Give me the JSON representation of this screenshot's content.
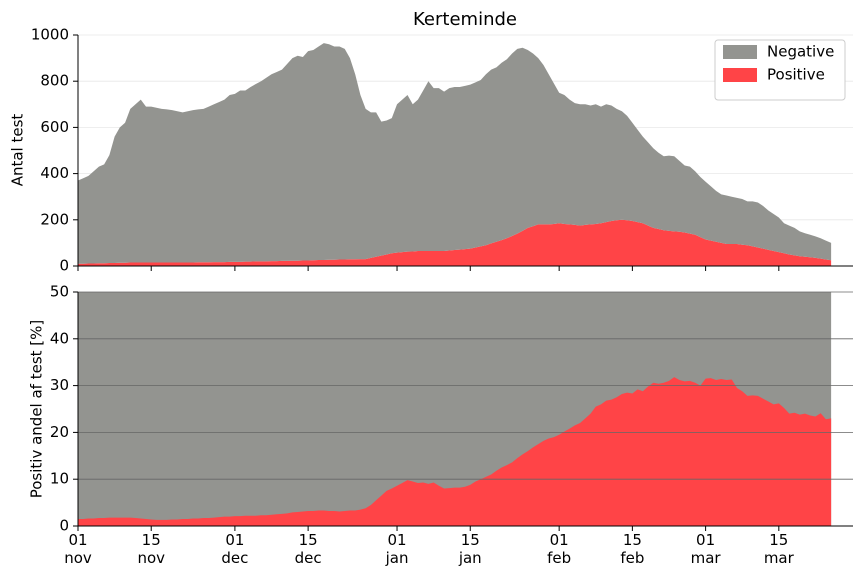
{
  "chart_data": [
    {
      "type": "stacked-area",
      "title": "Kerteminde",
      "y_label": "Antal test",
      "x": [
        "01 nov",
        "02 nov",
        "03 nov",
        "04 nov",
        "05 nov",
        "06 nov",
        "07 nov",
        "08 nov",
        "09 nov",
        "10 nov",
        "11 nov",
        "12 nov",
        "13 nov",
        "14 nov",
        "15 nov",
        "16 nov",
        "17 nov",
        "18 nov",
        "19 nov",
        "20 nov",
        "21 nov",
        "22 nov",
        "23 nov",
        "24 nov",
        "25 nov",
        "26 nov",
        "27 nov",
        "28 nov",
        "29 nov",
        "30 nov",
        "01 dec",
        "02 dec",
        "03 dec",
        "04 dec",
        "05 dec",
        "06 dec",
        "07 dec",
        "08 dec",
        "09 dec",
        "10 dec",
        "11 dec",
        "12 dec",
        "13 dec",
        "14 dec",
        "15 dec",
        "16 dec",
        "17 dec",
        "18 dec",
        "19 dec",
        "20 dec",
        "21 dec",
        "22 dec",
        "23 dec",
        "24 dec",
        "25 dec",
        "26 dec",
        "27 dec",
        "28 dec",
        "29 dec",
        "30 dec",
        "31 dec",
        "01 jan",
        "02 jan",
        "03 jan",
        "04 jan",
        "05 jan",
        "06 jan",
        "07 jan",
        "08 jan",
        "09 jan",
        "10 jan",
        "11 jan",
        "12 jan",
        "13 jan",
        "14 jan",
        "15 jan",
        "16 jan",
        "17 jan",
        "18 jan",
        "19 jan",
        "20 jan",
        "21 jan",
        "22 jan",
        "23 jan",
        "24 jan",
        "25 jan",
        "26 jan",
        "27 jan",
        "28 jan",
        "29 jan",
        "30 jan",
        "31 jan",
        "01 feb",
        "02 feb",
        "03 feb",
        "04 feb",
        "05 feb",
        "06 feb",
        "07 feb",
        "08 feb",
        "09 feb",
        "10 feb",
        "11 feb",
        "12 feb",
        "13 feb",
        "14 feb",
        "15 feb",
        "16 feb",
        "17 feb",
        "18 feb",
        "19 feb",
        "20 feb",
        "21 feb",
        "22 feb",
        "23 feb",
        "24 feb",
        "25 feb",
        "26 feb",
        "27 feb",
        "28 feb",
        "01 mar",
        "02 mar",
        "03 mar",
        "04 mar",
        "05 mar",
        "06 mar",
        "07 mar",
        "08 mar",
        "09 mar",
        "10 mar",
        "11 mar",
        "12 mar",
        "13 mar",
        "14 mar",
        "15 mar",
        "16 mar",
        "17 mar",
        "18 mar",
        "19 mar",
        "20 mar",
        "21 mar",
        "22 mar",
        "23 mar",
        "24 mar",
        "25 mar"
      ],
      "series": [
        {
          "name": "Positive",
          "color": "#ff4447",
          "values": [
            10,
            10,
            11,
            11,
            12,
            12,
            13,
            13,
            14,
            14,
            15,
            15,
            15,
            15,
            15,
            15,
            15,
            15,
            15,
            15,
            15,
            15,
            15,
            16,
            16,
            16,
            17,
            17,
            17,
            18,
            18,
            18,
            19,
            19,
            20,
            20,
            20,
            21,
            21,
            22,
            22,
            23,
            23,
            24,
            24,
            25,
            26,
            26,
            27,
            27,
            28,
            28,
            29,
            29,
            30,
            30,
            35,
            40,
            45,
            50,
            55,
            58,
            60,
            62,
            63,
            65,
            65,
            65,
            65,
            65,
            65,
            67,
            69,
            71,
            73,
            75,
            80,
            85,
            90,
            98,
            105,
            112,
            120,
            130,
            140,
            152,
            165,
            172,
            180,
            180,
            180,
            182,
            185,
            182,
            180,
            178,
            175,
            178,
            180,
            182,
            185,
            190,
            195,
            198,
            200,
            198,
            195,
            190,
            185,
            175,
            165,
            160,
            155,
            152,
            150,
            148,
            145,
            140,
            135,
            125,
            115,
            110,
            105,
            100,
            95,
            95,
            95,
            92,
            90,
            85,
            80,
            75,
            70,
            65,
            60,
            55,
            50,
            46,
            42,
            40,
            38,
            35,
            32,
            28,
            25
          ]
        },
        {
          "name": "Negative",
          "color": "#939490",
          "values": [
            360,
            370,
            379,
            399,
            418,
            428,
            467,
            547,
            586,
            606,
            665,
            685,
            705,
            675,
            675,
            670,
            665,
            663,
            660,
            655,
            650,
            655,
            660,
            662,
            664,
            674,
            683,
            693,
            703,
            722,
            727,
            742,
            741,
            756,
            768,
            780,
            795,
            809,
            819,
            828,
            853,
            877,
            887,
            881,
            906,
            910,
            924,
            939,
            933,
            923,
            922,
            912,
            871,
            801,
            710,
            650,
            630,
            625,
            580,
            580,
            585,
            642,
            660,
            678,
            637,
            655,
            695,
            735,
            705,
            705,
            690,
            703,
            706,
            704,
            707,
            710,
            715,
            720,
            740,
            752,
            755,
            768,
            775,
            790,
            800,
            793,
            770,
            748,
            720,
            690,
            650,
            608,
            565,
            558,
            540,
            527,
            525,
            522,
            515,
            518,
            505,
            510,
            500,
            482,
            470,
            452,
            425,
            400,
            375,
            360,
            345,
            330,
            320,
            326,
            325,
            307,
            290,
            290,
            275,
            260,
            250,
            235,
            220,
            210,
            210,
            205,
            200,
            198,
            190,
            195,
            195,
            185,
            170,
            160,
            150,
            130,
            125,
            119,
            108,
            102,
            97,
            93,
            88,
            82,
            75
          ]
        }
      ],
      "ylim": [
        0,
        1000
      ],
      "yticks": [
        0,
        200,
        400,
        600,
        800,
        1000
      ],
      "grid": true,
      "legend": "upper right"
    },
    {
      "type": "area",
      "y_label": "Positiv andel af test [%]",
      "color": "#ff4447",
      "background_color": "#939490",
      "x": [
        "01 nov",
        "02 nov",
        "03 nov",
        "04 nov",
        "05 nov",
        "06 nov",
        "07 nov",
        "08 nov",
        "09 nov",
        "10 nov",
        "11 nov",
        "12 nov",
        "13 nov",
        "14 nov",
        "15 nov",
        "16 nov",
        "17 nov",
        "18 nov",
        "19 nov",
        "20 nov",
        "21 nov",
        "22 nov",
        "23 nov",
        "24 nov",
        "25 nov",
        "26 nov",
        "27 nov",
        "28 nov",
        "29 nov",
        "30 nov",
        "01 dec",
        "02 dec",
        "03 dec",
        "04 dec",
        "05 dec",
        "06 dec",
        "07 dec",
        "08 dec",
        "09 dec",
        "10 dec",
        "11 dec",
        "12 dec",
        "13 dec",
        "14 dec",
        "15 dec",
        "16 dec",
        "17 dec",
        "18 dec",
        "19 dec",
        "20 dec",
        "21 dec",
        "22 dec",
        "23 dec",
        "24 dec",
        "25 dec",
        "26 dec",
        "27 dec",
        "28 dec",
        "29 dec",
        "30 dec",
        "31 dec",
        "01 jan",
        "02 jan",
        "03 jan",
        "04 jan",
        "05 jan",
        "06 jan",
        "07 jan",
        "08 jan",
        "09 jan",
        "10 jan",
        "11 jan",
        "12 jan",
        "13 jan",
        "14 jan",
        "15 jan",
        "16 jan",
        "17 jan",
        "18 jan",
        "19 jan",
        "20 jan",
        "21 jan",
        "22 jan",
        "23 jan",
        "24 jan",
        "25 jan",
        "26 jan",
        "27 jan",
        "28 jan",
        "29 jan",
        "30 jan",
        "31 jan",
        "01 feb",
        "02 feb",
        "03 feb",
        "04 feb",
        "05 feb",
        "06 feb",
        "07 feb",
        "08 feb",
        "09 feb",
        "10 feb",
        "11 feb",
        "12 feb",
        "13 feb",
        "14 feb",
        "15 feb",
        "16 feb",
        "17 feb",
        "18 feb",
        "19 feb",
        "20 feb",
        "21 feb",
        "22 feb",
        "23 feb",
        "24 feb",
        "25 feb",
        "26 feb",
        "27 feb",
        "28 feb",
        "01 mar",
        "02 mar",
        "03 mar",
        "04 mar",
        "05 mar",
        "06 mar",
        "07 mar",
        "08 mar",
        "09 mar",
        "10 mar",
        "11 mar",
        "12 mar",
        "13 mar",
        "14 mar",
        "15 mar",
        "16 mar",
        "17 mar",
        "18 mar",
        "19 mar",
        "20 mar",
        "21 mar",
        "22 mar",
        "23 mar",
        "24 mar",
        "25 mar"
      ],
      "values": [
        1.5,
        1.5,
        1.6,
        1.6,
        1.7,
        1.7,
        1.8,
        1.8,
        1.8,
        1.8,
        1.8,
        1.7,
        1.6,
        1.5,
        1.4,
        1.3,
        1.3,
        1.3,
        1.4,
        1.4,
        1.5,
        1.5,
        1.6,
        1.6,
        1.7,
        1.7,
        1.8,
        1.9,
        2.0,
        2.0,
        2.1,
        2.1,
        2.2,
        2.2,
        2.2,
        2.3,
        2.3,
        2.4,
        2.5,
        2.6,
        2.7,
        2.9,
        3.0,
        3.1,
        3.2,
        3.2,
        3.3,
        3.3,
        3.2,
        3.2,
        3.1,
        3.2,
        3.3,
        3.3,
        3.5,
        3.8,
        4.5,
        5.5,
        6.5,
        7.5,
        8.0,
        8.6,
        9.2,
        9.8,
        9.5,
        9.2,
        9.3,
        9.0,
        9.3,
        8.6,
        8.0,
        8.1,
        8.2,
        8.2,
        8.4,
        8.8,
        9.5,
        10.0,
        10.5,
        11.0,
        11.8,
        12.5,
        13.0,
        13.6,
        14.5,
        15.3,
        16.0,
        16.8,
        17.5,
        18.2,
        18.7,
        19.0,
        19.5,
        20.2,
        20.8,
        21.5,
        22.0,
        23.0,
        24.0,
        25.5,
        26.0,
        26.8,
        27.0,
        27.5,
        28.2,
        28.5,
        28.3,
        29.2,
        28.8,
        29.8,
        30.6,
        30.4,
        30.6,
        31.0,
        31.8,
        31.2,
        30.9,
        31.0,
        30.6,
        30.0,
        31.5,
        31.6,
        31.2,
        31.4,
        31.2,
        31.3,
        29.5,
        28.8,
        27.8,
        27.9,
        27.8,
        27.2,
        26.6,
        26.0,
        26.2,
        25.2,
        24.0,
        24.2,
        23.8,
        24.0,
        23.6,
        23.4,
        24.1,
        22.8,
        23.0
      ],
      "ylim": [
        0,
        50
      ],
      "yticks": [
        0,
        10,
        20,
        30,
        40,
        50
      ],
      "grid": true,
      "xticks": [
        {
          "value": "01 nov",
          "label": "01\nnov"
        },
        {
          "value": "15 nov",
          "label": "15\nnov"
        },
        {
          "value": "01 dec",
          "label": "01\ndec"
        },
        {
          "value": "15 dec",
          "label": "15\ndec"
        },
        {
          "value": "01 jan",
          "label": "01\njan"
        },
        {
          "value": "15 jan",
          "label": "15\njan"
        },
        {
          "value": "01 feb",
          "label": "01\nfeb"
        },
        {
          "value": "15 feb",
          "label": "15\nfeb"
        },
        {
          "value": "01 mar",
          "label": "01\nmar"
        },
        {
          "value": "15 mar",
          "label": "15\nmar"
        }
      ]
    }
  ]
}
